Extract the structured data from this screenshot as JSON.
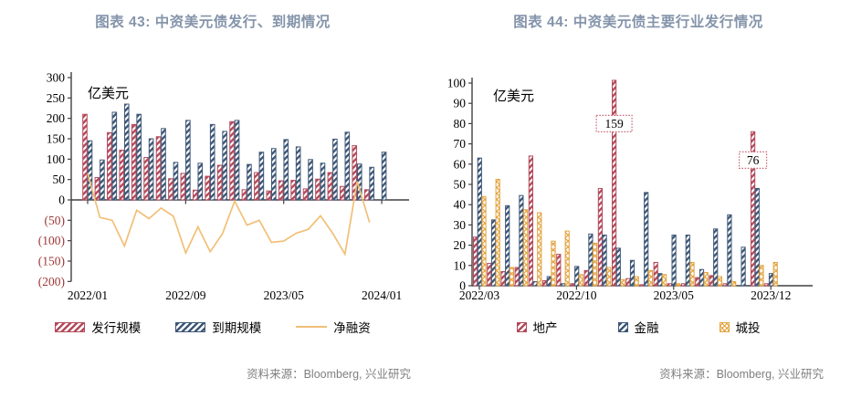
{
  "page": {
    "background": "#ffffff",
    "title_color": "#8494aa",
    "source_color": "#7f7f7f"
  },
  "figures": [
    {
      "title": "图表 43: 中资美元债发行、到期情况",
      "unit_label": "亿美元",
      "source": "资料来源：Bloomberg, 兴业研究",
      "legend": [
        {
          "slug": "issuance",
          "label": "发行规模",
          "swatch": "bar",
          "color": "#b34a5b"
        },
        {
          "slug": "maturity",
          "label": "到期规模",
          "swatch": "bar",
          "color": "#3e5777"
        },
        {
          "slug": "net-financing",
          "label": "净融资",
          "swatch": "line",
          "color": "#f2bf77"
        }
      ],
      "chart_data": {
        "type": "bar",
        "title": "中资美元债发行、到期情况",
        "ylabel": "亿美元",
        "ylim": [
          -200,
          300
        ],
        "grid": false,
        "negative_tick_color": "#9c3636",
        "yticks": [
          {
            "value": 300,
            "label": "300"
          },
          {
            "value": 250,
            "label": "250"
          },
          {
            "value": 200,
            "label": "200"
          },
          {
            "value": 150,
            "label": "150"
          },
          {
            "value": 100,
            "label": "100"
          },
          {
            "value": 50,
            "label": "50"
          },
          {
            "value": 0,
            "label": "0"
          },
          {
            "value": -50,
            "label": "(50)"
          },
          {
            "value": -100,
            "label": "(100)"
          },
          {
            "value": -150,
            "label": "(150)"
          },
          {
            "value": -200,
            "label": "(200)"
          }
        ],
        "categories": [
          "2022/01",
          "2022/02",
          "2022/03",
          "2022/04",
          "2022/05",
          "2022/06",
          "2022/07",
          "2022/08",
          "2022/09",
          "2022/10",
          "2022/11",
          "2022/12",
          "2023/01",
          "2023/02",
          "2023/03",
          "2023/04",
          "2023/05",
          "2023/06",
          "2023/07",
          "2023/08",
          "2023/09",
          "2023/10",
          "2023/11",
          "2023/12",
          "2024/01"
        ],
        "xticks_shown": [
          {
            "index": 0,
            "label": "2022/01"
          },
          {
            "index": 8,
            "label": "2022/09"
          },
          {
            "index": 16,
            "label": "2023/05"
          },
          {
            "index": 24,
            "label": "2024/01"
          }
        ],
        "series": [
          {
            "name": "发行规模",
            "slug": "issuance",
            "kind": "bar",
            "hatch": "diagonal",
            "color": "#b34a5b",
            "values": [
              210,
              55,
              165,
              122,
              185,
              104,
              155,
              52,
              65,
              24,
              58,
              85,
              192,
              25,
              67,
              22,
              47,
              48,
              27,
              51,
              67,
              33,
              133,
              25,
              0
            ]
          },
          {
            "name": "到期规模",
            "slug": "maturity",
            "kind": "bar",
            "hatch": "diagonal",
            "color": "#3e5777",
            "values": [
              145,
              98,
              215,
              235,
              210,
              150,
              175,
              92,
              195,
              90,
              185,
              168,
              195,
              87,
              117,
              126,
              148,
              130,
              99,
              90,
              149,
              166,
              88,
              80,
              117
            ]
          },
          {
            "name": "净融资",
            "slug": "net-financing",
            "kind": "line",
            "color": "#f2bf77",
            "values": [
              65,
              -43,
              -50,
              -113,
              -25,
              -46,
              -20,
              -40,
              -130,
              -66,
              -127,
              -83,
              -3,
              -62,
              -50,
              -104,
              -101,
              -82,
              -72,
              -39,
              -82,
              -133,
              45,
              -55,
              null
            ]
          }
        ]
      }
    },
    {
      "title": "图表 44: 中资美元债主要行业发行情况",
      "unit_label": "亿美元",
      "source": "资料来源：Bloomberg, 兴业研究",
      "legend": [
        {
          "slug": "real-estate",
          "label": "地产",
          "swatch": "square",
          "color": "#b34a5b"
        },
        {
          "slug": "finance",
          "label": "金融",
          "swatch": "square",
          "color": "#3e5777"
        },
        {
          "slug": "urban-investment",
          "label": "城投",
          "swatch": "square-cross",
          "color": "#e3a23d"
        }
      ],
      "chart_data": {
        "type": "bar",
        "title": "中资美元债主要行业发行情况",
        "ylabel": "亿美元",
        "ylim": [
          0,
          100
        ],
        "grid": false,
        "negative_tick_color": "#9c3636",
        "yticks": [
          {
            "value": 100,
            "label": "100"
          },
          {
            "value": 90,
            "label": "90"
          },
          {
            "value": 80,
            "label": "80"
          },
          {
            "value": 70,
            "label": "70"
          },
          {
            "value": 60,
            "label": "60"
          },
          {
            "value": 50,
            "label": "50"
          },
          {
            "value": 40,
            "label": "40"
          },
          {
            "value": 30,
            "label": "30"
          },
          {
            "value": 20,
            "label": "20"
          },
          {
            "value": 10,
            "label": "10"
          },
          {
            "value": 0,
            "label": "0"
          }
        ],
        "categories": [
          "2022/03",
          "2022/04",
          "2022/05",
          "2022/06",
          "2022/07",
          "2022/08",
          "2022/09",
          "2022/10",
          "2022/11",
          "2022/12",
          "2023/01",
          "2023/02",
          "2023/03",
          "2023/04",
          "2023/05",
          "2023/06",
          "2023/07",
          "2023/08",
          "2023/09",
          "2023/10",
          "2023/11",
          "2023/12"
        ],
        "xticks_shown": [
          {
            "index": 0,
            "label": "2022/03"
          },
          {
            "index": 7,
            "label": "2022/10"
          },
          {
            "index": 14,
            "label": "2023/05"
          },
          {
            "index": 21,
            "label": "2023/12"
          }
        ],
        "annotations": [
          {
            "text": "159",
            "category_index": 10,
            "at_value": 80
          },
          {
            "text": "76",
            "category_index": 20,
            "at_value": 62
          }
        ],
        "series": [
          {
            "name": "地产",
            "slug": "real-estate",
            "kind": "bar",
            "hatch": "diagonal",
            "color": "#b34a5b",
            "values": [
              24,
              11,
              7,
              9,
              64,
              2.5,
              15.5,
              1,
              7.5,
              48,
              159,
              3.5,
              0.5,
              11.5,
              1,
              1,
              4,
              5,
              1,
              0,
              76,
              1
            ]
          },
          {
            "name": "金融",
            "slug": "finance",
            "kind": "bar",
            "hatch": "diagonal",
            "color": "#3e5777",
            "values": [
              63,
              32.5,
              39.5,
              44.5,
              2,
              4.5,
              1,
              9.5,
              25.5,
              25,
              18.5,
              12.5,
              46,
              6,
              25,
              25,
              8,
              28,
              35,
              19,
              48,
              6
            ]
          },
          {
            "name": "城投",
            "slug": "urban-investment",
            "kind": "bar",
            "hatch": "cross",
            "color": "#e3a23d",
            "values": [
              44,
              52.5,
              9,
              37.5,
              36,
              22,
              27,
              5.5,
              21,
              9,
              3,
              4.5,
              7.5,
              5.5,
              1,
              11.5,
              6.5,
              4.5,
              2,
              0,
              10,
              11.5
            ]
          }
        ]
      }
    }
  ]
}
